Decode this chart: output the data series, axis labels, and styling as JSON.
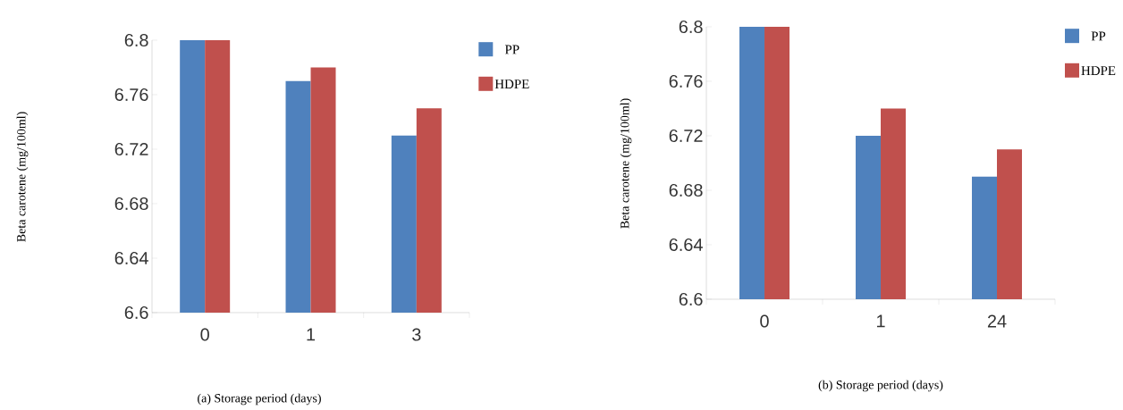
{
  "chart_data": [
    {
      "type": "bar",
      "xlabel": "(a) Storage period (days)",
      "ylabel": "Beta carotene (mg/100ml)",
      "categories": [
        "0",
        "1",
        "3"
      ],
      "series": [
        {
          "name": "PP",
          "color": "#4f81bd",
          "values": [
            6.8,
            6.77,
            6.73
          ]
        },
        {
          "name": "HDPE",
          "color": "#c0504d",
          "values": [
            6.8,
            6.78,
            6.75
          ]
        }
      ],
      "ylim": [
        6.6,
        6.8
      ],
      "yticks": [
        6.6,
        6.64,
        6.68,
        6.72,
        6.76,
        6.8
      ],
      "grid": false,
      "legend": "top right"
    },
    {
      "type": "bar",
      "xlabel": "(b) Storage period (days)",
      "ylabel": "Beta carotene (mg/100ml)",
      "categories": [
        "0",
        "1",
        "24"
      ],
      "series": [
        {
          "name": "PP",
          "color": "#4f81bd",
          "values": [
            6.8,
            6.72,
            6.69
          ]
        },
        {
          "name": "HDPE",
          "color": "#c0504d",
          "values": [
            6.8,
            6.74,
            6.71
          ]
        }
      ],
      "ylim": [
        6.6,
        6.8
      ],
      "yticks": [
        6.6,
        6.64,
        6.68,
        6.72,
        6.76,
        6.8
      ],
      "grid": false,
      "legend": "top right"
    }
  ]
}
